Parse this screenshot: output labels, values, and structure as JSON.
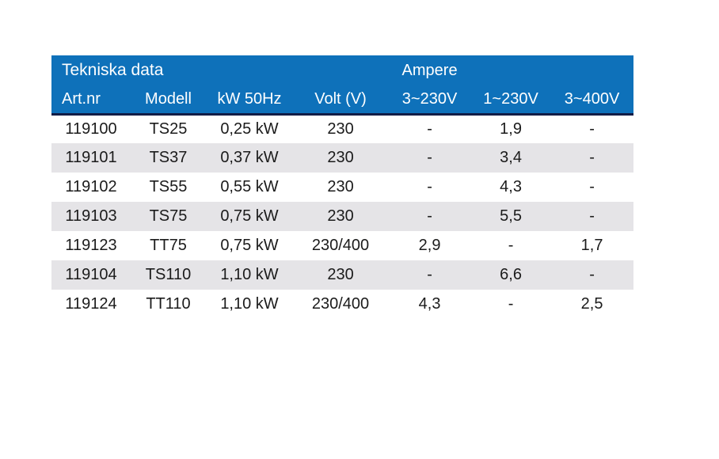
{
  "page": {
    "background": "#FFFFFF"
  },
  "table": {
    "title": "Tekniska data",
    "group_header": "Ampere",
    "columns": [
      "Art.nr",
      "Modell",
      "kW 50Hz",
      "Volt (V)",
      "3~230V",
      "1~230V",
      "3~400V"
    ],
    "rows": [
      [
        "119100",
        "TS25",
        "0,25 kW",
        "230",
        "-",
        "1,9",
        "-"
      ],
      [
        "119101",
        "TS37",
        "0,37 kW",
        "230",
        "-",
        "3,4",
        "-"
      ],
      [
        "119102",
        "TS55",
        "0,55 kW",
        "230",
        "-",
        "4,3",
        "-"
      ],
      [
        "119103",
        "TS75",
        "0,75 kW",
        "230",
        "-",
        "5,5",
        "-"
      ],
      [
        "119123",
        "TT75",
        "0,75 kW",
        "230/400",
        "2,9",
        "-",
        "1,7"
      ],
      [
        "119104",
        "TS110",
        "1,10 kW",
        "230",
        "-",
        "6,6",
        "-"
      ],
      [
        "119124",
        "TT110",
        "1,10 kW",
        "230/400",
        "4,3",
        "-",
        "2,5"
      ]
    ],
    "colors": {
      "header_bg": "#0E71BA",
      "header_text": "#FFFFFF",
      "header_border_bottom": "#121C46",
      "row_bg": "#FFFFFF",
      "row_alt_bg": "#E5E4E7",
      "body_text": "#1B1B1B",
      "page_bg": "#FFFFFF"
    }
  }
}
